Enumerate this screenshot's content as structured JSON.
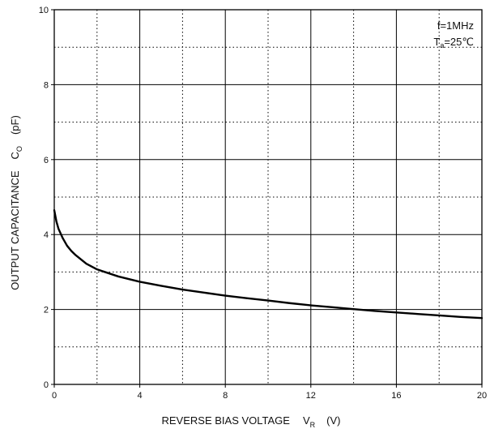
{
  "chart_data": {
    "type": "line",
    "title": "",
    "xlabel": {
      "main": "REVERSE BIAS VOLTAGE",
      "symbol": "V",
      "subscript": "R",
      "unit": "(V)"
    },
    "ylabel": {
      "main": "OUTPUT CAPACITANCE",
      "symbol": "C",
      "subscript": "O",
      "unit": "(pF)"
    },
    "xlim": [
      0,
      20
    ],
    "ylim": [
      0,
      10
    ],
    "x_major_ticks": [
      0,
      4,
      8,
      12,
      16,
      20
    ],
    "y_major_ticks": [
      0,
      2,
      4,
      6,
      8,
      10
    ],
    "x_tick_labels": [
      "0",
      "4",
      "8",
      "12",
      "16",
      "20"
    ],
    "y_tick_labels": [
      "0",
      "2",
      "4",
      "6",
      "8",
      "10"
    ],
    "x_minor_gridlines": [
      2,
      6,
      10,
      14,
      18
    ],
    "y_minor_gridlines": [
      1,
      3,
      5,
      7,
      9
    ],
    "grid": {
      "major": "solid",
      "minor": "dotted"
    },
    "annotations": {
      "frequency": "f=1MHz",
      "temp_symbol": "T",
      "temp_subscript": "a",
      "temp_value": "=25℃"
    },
    "series": [
      {
        "x": [
          0,
          0.1,
          0.2,
          0.4,
          0.6,
          0.8,
          1,
          1.5,
          2,
          3,
          4,
          5,
          6,
          7,
          8,
          9,
          10,
          11,
          12,
          13,
          14,
          15,
          16,
          17,
          18,
          19,
          20
        ],
        "y": [
          4.65,
          4.35,
          4.15,
          3.9,
          3.7,
          3.56,
          3.45,
          3.22,
          3.07,
          2.88,
          2.74,
          2.63,
          2.53,
          2.45,
          2.37,
          2.3,
          2.24,
          2.17,
          2.11,
          2.06,
          2.01,
          1.96,
          1.92,
          1.88,
          1.84,
          1.8,
          1.77
        ]
      }
    ]
  }
}
